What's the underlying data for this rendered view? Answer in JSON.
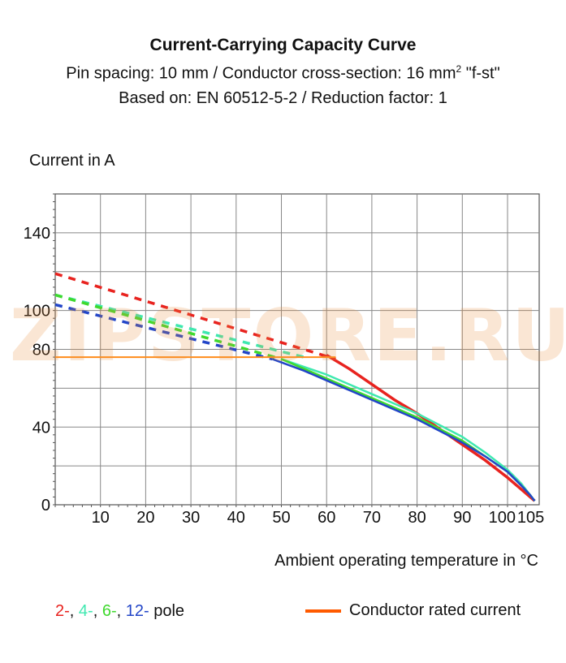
{
  "titles": {
    "main": "Current-Carrying Capacity Curve",
    "line2_prefix": "Pin spacing: 10 mm / Conductor cross-section: 16 mm",
    "line2_sup": "2",
    "line2_suffix": " \"f-st\"",
    "line3": "Based on: EN 60512-5-2 / Reduction factor: 1"
  },
  "watermark": "ZIPSTORE.RU",
  "legend": {
    "pole": [
      {
        "text": "2-",
        "color": "#e8231f"
      },
      {
        "text": ", ",
        "color": "#111111"
      },
      {
        "text": "4-",
        "color": "#3fe8b0"
      },
      {
        "text": ", ",
        "color": "#111111"
      },
      {
        "text": "6-",
        "color": "#3fd92e"
      },
      {
        "text": ", ",
        "color": "#111111"
      },
      {
        "text": "12-",
        "color": "#2346c8"
      },
      {
        "text": " pole",
        "color": "#111111"
      }
    ],
    "rated_label": "Conductor rated current",
    "rated_color": "#ff5a00"
  },
  "chart_data": {
    "type": "line",
    "title": "Current-Carrying Capacity Curve",
    "xlabel": "Ambient operating temperature in °C",
    "ylabel": "Current in A",
    "xlim": [
      0,
      107
    ],
    "ylim": [
      0,
      160
    ],
    "x_ticks": [
      10,
      20,
      30,
      40,
      50,
      60,
      70,
      80,
      90,
      100,
      105
    ],
    "x_tick_labels": [
      "10",
      "20",
      "30",
      "40",
      "50",
      "60",
      "70",
      "80",
      "90",
      "100",
      "105"
    ],
    "y_ticks": [
      0,
      40,
      80,
      100,
      140
    ],
    "y_tick_labels": [
      "0",
      "40",
      "80",
      "100",
      "140"
    ],
    "grid": true,
    "series": [
      {
        "name": "2-",
        "color": "#e8231f",
        "dashed": {
          "x": [
            0,
            62
          ],
          "y": [
            119,
            75
          ]
        },
        "solid": {
          "x": [
            60,
            65,
            70,
            75,
            80,
            85,
            90,
            95,
            100,
            103,
            105,
            106
          ],
          "y": [
            77,
            70,
            62,
            54,
            47,
            39,
            31,
            23,
            14,
            8,
            4,
            2
          ]
        }
      },
      {
        "name": "4-",
        "color": "#3fe8b0",
        "dashed": {
          "x": [
            0,
            55
          ],
          "y": [
            108,
            76
          ]
        },
        "solid": {
          "x": [
            50,
            55,
            60,
            65,
            70,
            75,
            80,
            85,
            90,
            95,
            100,
            103,
            105,
            106
          ],
          "y": [
            75,
            71,
            67,
            62,
            57,
            52,
            47,
            41,
            35,
            27,
            18,
            11,
            5,
            2
          ]
        }
      },
      {
        "name": "6-",
        "color": "#3fd92e",
        "dashed": {
          "x": [
            0,
            50
          ],
          "y": [
            108,
            75
          ]
        },
        "solid": {
          "x": [
            50,
            55,
            60,
            65,
            70,
            75,
            80,
            85,
            90,
            95,
            100,
            103,
            105,
            106
          ],
          "y": [
            75,
            70,
            65,
            60,
            55,
            50,
            45,
            39,
            33,
            25,
            17,
            10,
            5,
            2
          ]
        }
      },
      {
        "name": "12-",
        "color": "#2346c8",
        "dashed": {
          "x": [
            0,
            48
          ],
          "y": [
            103,
            75
          ]
        },
        "solid": {
          "x": [
            48,
            55,
            60,
            65,
            70,
            75,
            80,
            85,
            90,
            95,
            100,
            103,
            105,
            106
          ],
          "y": [
            75,
            69,
            64,
            59,
            54,
            49,
            44,
            38,
            32,
            25,
            17,
            10,
            5,
            2
          ]
        }
      },
      {
        "name": "Conductor rated current",
        "color": "#ff8c1a",
        "solid": {
          "x": [
            0,
            62
          ],
          "y": [
            76,
            76
          ]
        }
      }
    ]
  }
}
